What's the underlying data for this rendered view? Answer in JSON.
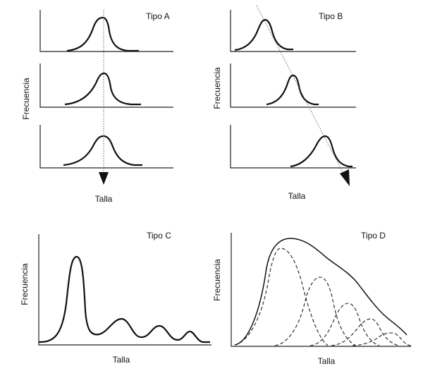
{
  "panels": {
    "a": {
      "title": "Tipo A",
      "ylabel": "Frecuencia",
      "xlabel": "Talla"
    },
    "b": {
      "title": "Tipo B",
      "ylabel": "Frecuencia",
      "xlabel": "Talla"
    },
    "c": {
      "title": "Tipo C",
      "ylabel": "Frecuencia",
      "xlabel": "Talla"
    },
    "d": {
      "title": "Tipo D",
      "ylabel": "Frecuencia",
      "xlabel": "Talla"
    }
  }
}
